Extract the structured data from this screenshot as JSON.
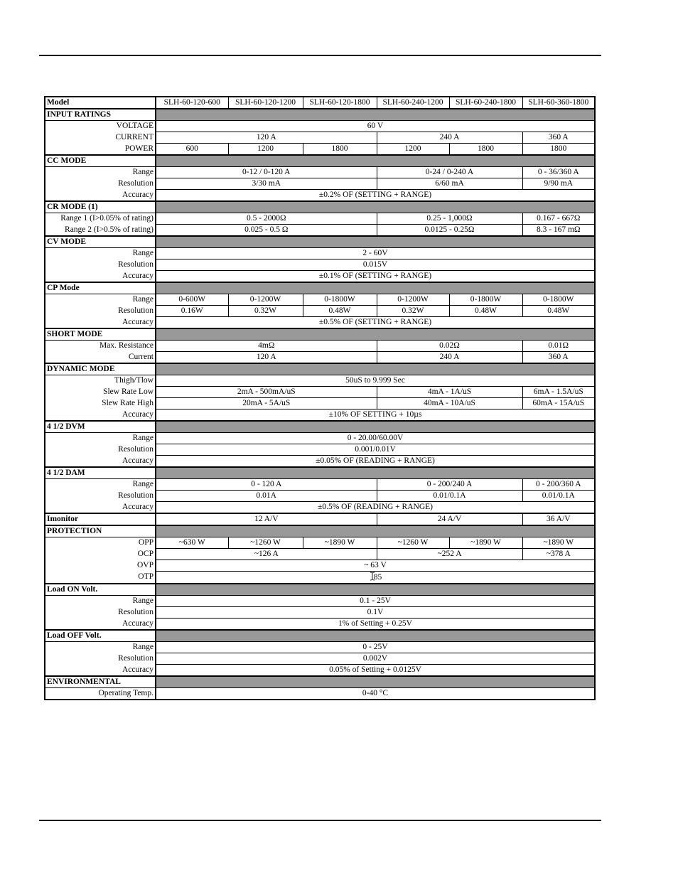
{
  "header": {
    "label": "Model",
    "models": [
      "SLH-60-120-600",
      "SLH-60-120-1200",
      "SLH-60-120-1800",
      "SLH-60-240-1200",
      "SLH-60-240-1800",
      "SLH-60-360-1800"
    ]
  },
  "colors": {
    "section_bar": "#999999",
    "border": "#000000",
    "page_background": "#ffffff"
  },
  "icons": {
    "otp_cursor": "text-cursor-icon"
  },
  "rows": [
    {
      "label": "INPUT RATINGS",
      "type": "section",
      "cells": [
        {
          "t": "",
          "span": 6,
          "gray": true
        }
      ]
    },
    {
      "label": "VOLTAGE",
      "type": "plain",
      "cells": [
        {
          "t": "60 V",
          "span": 6
        }
      ]
    },
    {
      "label": "CURRENT",
      "type": "plain",
      "cells": [
        {
          "t": "120 A",
          "span": 3
        },
        {
          "t": "240 A",
          "span": 2
        },
        {
          "t": "360 A",
          "span": 1
        }
      ]
    },
    {
      "label": "POWER",
      "type": "plain",
      "cells": [
        {
          "t": "600"
        },
        {
          "t": "1200"
        },
        {
          "t": "1800"
        },
        {
          "t": "1200"
        },
        {
          "t": "1800"
        },
        {
          "t": "1800"
        }
      ]
    },
    {
      "label": "CC MODE",
      "type": "section",
      "cells": [
        {
          "t": "",
          "span": 6,
          "gray": true
        }
      ]
    },
    {
      "label": "Range",
      "type": "plain",
      "cells": [
        {
          "t": "0-12 / 0-120 A",
          "span": 3
        },
        {
          "t": "0-24 / 0-240 A",
          "span": 2
        },
        {
          "t": "0 - 36/360 A",
          "span": 1
        }
      ]
    },
    {
      "label": "Resolution",
      "type": "plain",
      "cells": [
        {
          "t": "3/30 mA",
          "span": 3
        },
        {
          "t": "6/60 mA",
          "span": 2
        },
        {
          "t": "9/90 mA",
          "span": 1
        }
      ]
    },
    {
      "label": "Accuracy",
      "type": "plain",
      "cells": [
        {
          "t": "±0.2% OF (SETTING + RANGE)",
          "span": 6
        }
      ]
    },
    {
      "label": "CR MODE (1)",
      "type": "section",
      "cells": [
        {
          "t": "",
          "span": 6,
          "gray": true
        }
      ]
    },
    {
      "label": "Range 1 (I>0.05% of rating)",
      "type": "plain",
      "cells": [
        {
          "t": "0.5 - 2000Ω",
          "span": 3
        },
        {
          "t": "0.25 - 1,000Ω",
          "span": 2
        },
        {
          "t": "0.167 - 667Ω",
          "span": 1
        }
      ]
    },
    {
      "label": "Range 2 (I>0.5% of rating)",
      "type": "plain",
      "cells": [
        {
          "t": "0.025 - 0.5 Ω",
          "span": 3
        },
        {
          "t": "0.0125 - 0.25Ω",
          "span": 2
        },
        {
          "t": "8.3 - 167 mΩ",
          "span": 1
        }
      ]
    },
    {
      "label": "CV MODE",
      "type": "section",
      "cells": [
        {
          "t": "",
          "span": 6,
          "gray": true
        }
      ]
    },
    {
      "label": "Range",
      "type": "plain",
      "cells": [
        {
          "t": "2 - 60V",
          "span": 6
        }
      ]
    },
    {
      "label": "Resolution",
      "type": "plain",
      "cells": [
        {
          "t": "0.015V",
          "span": 6
        }
      ]
    },
    {
      "label": "Accuracy",
      "type": "plain",
      "cells": [
        {
          "t": "±0.1% OF (SETTING + RANGE)",
          "span": 6
        }
      ]
    },
    {
      "label": "CP Mode",
      "type": "section",
      "cells": [
        {
          "t": "",
          "span": 6,
          "gray": true
        }
      ]
    },
    {
      "label": "Range",
      "type": "plain",
      "cells": [
        {
          "t": "0-600W"
        },
        {
          "t": "0-1200W"
        },
        {
          "t": "0-1800W"
        },
        {
          "t": "0-1200W"
        },
        {
          "t": "0-1800W"
        },
        {
          "t": "0-1800W"
        }
      ]
    },
    {
      "label": "Resolution",
      "type": "plain",
      "cells": [
        {
          "t": "0.16W"
        },
        {
          "t": "0.32W"
        },
        {
          "t": "0.48W"
        },
        {
          "t": "0.32W"
        },
        {
          "t": "0.48W"
        },
        {
          "t": "0.48W"
        }
      ]
    },
    {
      "label": "Accuracy",
      "type": "plain",
      "cells": [
        {
          "t": "±0.5% OF (SETTING + RANGE)",
          "span": 6
        }
      ]
    },
    {
      "label": "SHORT MODE",
      "type": "section",
      "cells": [
        {
          "t": "",
          "span": 6,
          "gray": true
        }
      ]
    },
    {
      "label": "Max. Resistance",
      "type": "plain",
      "cells": [
        {
          "t": "4mΩ",
          "span": 3
        },
        {
          "t": "0.02Ω",
          "span": 2
        },
        {
          "t": "0.01Ω",
          "span": 1
        }
      ]
    },
    {
      "label": "Current",
      "type": "plain",
      "cells": [
        {
          "t": "120 A",
          "span": 3
        },
        {
          "t": "240 A",
          "span": 2
        },
        {
          "t": "360 A",
          "span": 1
        }
      ]
    },
    {
      "label": "DYNAMIC MODE",
      "type": "section",
      "cells": [
        {
          "t": "",
          "span": 6,
          "gray": true
        }
      ]
    },
    {
      "label": "Thigh/Tlow",
      "type": "plain",
      "cells": [
        {
          "t": "50uS to 9.999 Sec",
          "span": 6
        }
      ]
    },
    {
      "label": "Slew Rate Low",
      "type": "plain",
      "cells": [
        {
          "t": "2mA - 500mA/uS",
          "span": 3
        },
        {
          "t": "4mA - 1A/uS",
          "span": 2
        },
        {
          "t": "6mA - 1.5A/uS",
          "span": 1
        }
      ]
    },
    {
      "label": "Slew Rate High",
      "type": "plain",
      "cells": [
        {
          "t": "20mA - 5A/uS",
          "span": 3
        },
        {
          "t": "40mA - 10A/uS",
          "span": 2
        },
        {
          "t": "60mA - 15A/uS",
          "span": 1
        }
      ]
    },
    {
      "label": "Accuracy",
      "type": "plain",
      "cells": [
        {
          "t": "±10% OF SETTING + 10µs",
          "span": 6
        }
      ]
    },
    {
      "label": "4 1/2 DVM",
      "type": "section",
      "cells": [
        {
          "t": "",
          "span": 6,
          "gray": true
        }
      ]
    },
    {
      "label": "Range",
      "type": "plain",
      "cells": [
        {
          "t": "0 - 20.00/60.00V",
          "span": 6
        }
      ]
    },
    {
      "label": "Resolution",
      "type": "plain",
      "cells": [
        {
          "t": "0.001/0.01V",
          "span": 6
        }
      ]
    },
    {
      "label": "Accuracy",
      "type": "plain",
      "cells": [
        {
          "t": "±0.05% OF (READING + RANGE)",
          "span": 6
        }
      ]
    },
    {
      "label": "4 1/2 DAM",
      "type": "section",
      "cells": [
        {
          "t": "",
          "span": 6,
          "gray": true
        }
      ]
    },
    {
      "label": "Range",
      "type": "plain",
      "cells": [
        {
          "t": "0 - 120 A",
          "span": 3
        },
        {
          "t": "0 - 200/240 A",
          "span": 2
        },
        {
          "t": "0 - 200/360 A",
          "span": 1
        }
      ]
    },
    {
      "label": "Resolution",
      "type": "plain",
      "cells": [
        {
          "t": "0.01A",
          "span": 3
        },
        {
          "t": "0.01/0.1A",
          "span": 2
        },
        {
          "t": "0.01/0.1A",
          "span": 1
        }
      ]
    },
    {
      "label": "Accuracy",
      "type": "plain",
      "cells": [
        {
          "t": "±0.5% OF (READING + RANGE)",
          "span": 6
        }
      ]
    },
    {
      "label": "Imonitor",
      "type": "section-inline",
      "cells": [
        {
          "t": "12 A/V",
          "span": 3
        },
        {
          "t": "24 A/V",
          "span": 2
        },
        {
          "t": "36 A/V",
          "span": 1
        }
      ]
    },
    {
      "label": "PROTECTION",
      "type": "section",
      "cells": [
        {
          "t": "",
          "span": 6,
          "gray": true
        }
      ]
    },
    {
      "label": "OPP",
      "type": "plain",
      "cells": [
        {
          "t": "~630 W"
        },
        {
          "t": "~1260 W"
        },
        {
          "t": "~1890 W"
        },
        {
          "t": "~1260 W"
        },
        {
          "t": "~1890 W"
        },
        {
          "t": "~1890 W"
        }
      ]
    },
    {
      "label": "OCP",
      "type": "plain",
      "cells": [
        {
          "t": "~126 A",
          "span": 3
        },
        {
          "t": "~252 A",
          "span": 2
        },
        {
          "t": "~378 A",
          "span": 1
        }
      ]
    },
    {
      "label": "OVP",
      "type": "plain",
      "cells": [
        {
          "t": "~ 63 V",
          "span": 6
        }
      ]
    },
    {
      "label": "OTP",
      "type": "plain",
      "cells": [
        {
          "t": "85",
          "span": 6,
          "cursor": true
        }
      ]
    },
    {
      "label": "Load ON Volt.",
      "type": "section",
      "cells": [
        {
          "t": "",
          "span": 6,
          "gray": true
        }
      ]
    },
    {
      "label": "Range",
      "type": "plain",
      "cells": [
        {
          "t": "0.1 - 25V",
          "span": 6
        }
      ]
    },
    {
      "label": "Resolution",
      "type": "plain",
      "cells": [
        {
          "t": "0.1V",
          "span": 6
        }
      ]
    },
    {
      "label": "Accuracy",
      "type": "plain",
      "cells": [
        {
          "t": "1% of Setting + 0.25V",
          "span": 6
        }
      ]
    },
    {
      "label": "Load OFF Volt.",
      "type": "section",
      "cells": [
        {
          "t": "",
          "span": 6,
          "gray": true
        }
      ]
    },
    {
      "label": "Range",
      "type": "plain",
      "cells": [
        {
          "t": "0 - 25V",
          "span": 6
        }
      ]
    },
    {
      "label": "Resolution",
      "type": "plain",
      "cells": [
        {
          "t": "0.002V",
          "span": 6
        }
      ]
    },
    {
      "label": "Accuracy",
      "type": "plain",
      "cells": [
        {
          "t": "0.05% of Setting + 0.0125V",
          "span": 6
        }
      ]
    },
    {
      "label": "ENVIRONMENTAL",
      "type": "section",
      "cells": [
        {
          "t": "",
          "span": 6,
          "gray": true
        }
      ]
    },
    {
      "label": "Operating Temp.",
      "type": "plain",
      "cells": [
        {
          "t": "0-40 °C",
          "span": 6
        }
      ]
    }
  ]
}
